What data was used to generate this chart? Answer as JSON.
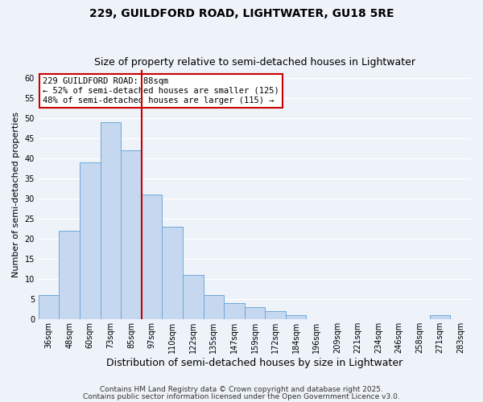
{
  "title_line1": "229, GUILDFORD ROAD, LIGHTWATER, GU18 5RE",
  "title_line2": "Size of property relative to semi-detached houses in Lightwater",
  "xlabel": "Distribution of semi-detached houses by size in Lightwater",
  "ylabel": "Number of semi-detached properties",
  "bar_labels": [
    "36sqm",
    "48sqm",
    "60sqm",
    "73sqm",
    "85sqm",
    "97sqm",
    "110sqm",
    "122sqm",
    "135sqm",
    "147sqm",
    "159sqm",
    "172sqm",
    "184sqm",
    "196sqm",
    "209sqm",
    "221sqm",
    "234sqm",
    "246sqm",
    "258sqm",
    "271sqm",
    "283sqm"
  ],
  "bar_values": [
    6,
    22,
    39,
    49,
    42,
    31,
    23,
    11,
    6,
    4,
    3,
    2,
    1,
    0,
    0,
    0,
    0,
    0,
    0,
    1,
    0
  ],
  "bar_color": "#c5d8f0",
  "bar_edge_color": "#6ea8d8",
  "vline_pos": 4.5,
  "vline_color": "#cc0000",
  "ylim": [
    0,
    62
  ],
  "yticks": [
    0,
    5,
    10,
    15,
    20,
    25,
    30,
    35,
    40,
    45,
    50,
    55,
    60
  ],
  "annotation_title": "229 GUILDFORD ROAD: 88sqm",
  "annotation_line1": "← 52% of semi-detached houses are smaller (125)",
  "annotation_line2": "48% of semi-detached houses are larger (115) →",
  "annotation_box_color": "#ffffff",
  "annotation_box_edge": "#cc0000",
  "footer_line1": "Contains HM Land Registry data © Crown copyright and database right 2025.",
  "footer_line2": "Contains public sector information licensed under the Open Government Licence v3.0.",
  "background_color": "#eef2f9",
  "grid_color": "#ffffff",
  "title_fontsize": 10,
  "subtitle_fontsize": 9,
  "xlabel_fontsize": 9,
  "ylabel_fontsize": 8,
  "tick_fontsize": 7,
  "footer_fontsize": 6.5,
  "ann_fontsize": 7.5
}
